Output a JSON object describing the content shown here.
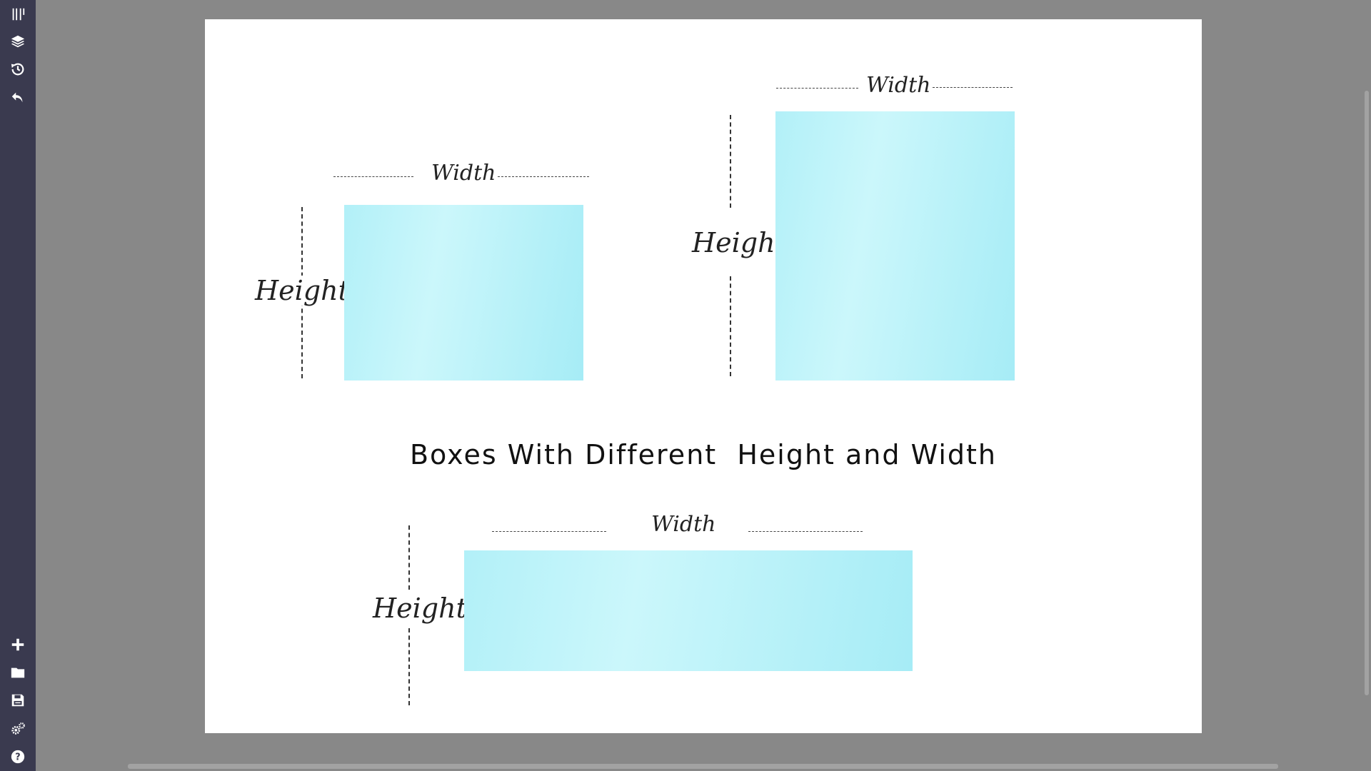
{
  "toolbar": {
    "top_icons": [
      "tools-icon",
      "layers-icon",
      "history-icon",
      "undo-icon"
    ],
    "bottom_icons": [
      "add-icon",
      "folder-icon",
      "save-icon",
      "settings-icon",
      "help-icon"
    ]
  },
  "canvas": {
    "headline": "Boxes With Different  Height and Width",
    "box1": {
      "width_label": "Width",
      "height_label": "Height"
    },
    "box2": {
      "width_label": "Width",
      "height_label": "Height"
    },
    "box3": {
      "width_label": "Width",
      "height_label": "Height"
    }
  },
  "colors": {
    "sidebar": "#3a3a4f",
    "workspace": "#888888",
    "box_fill": "#b2f0f8"
  }
}
